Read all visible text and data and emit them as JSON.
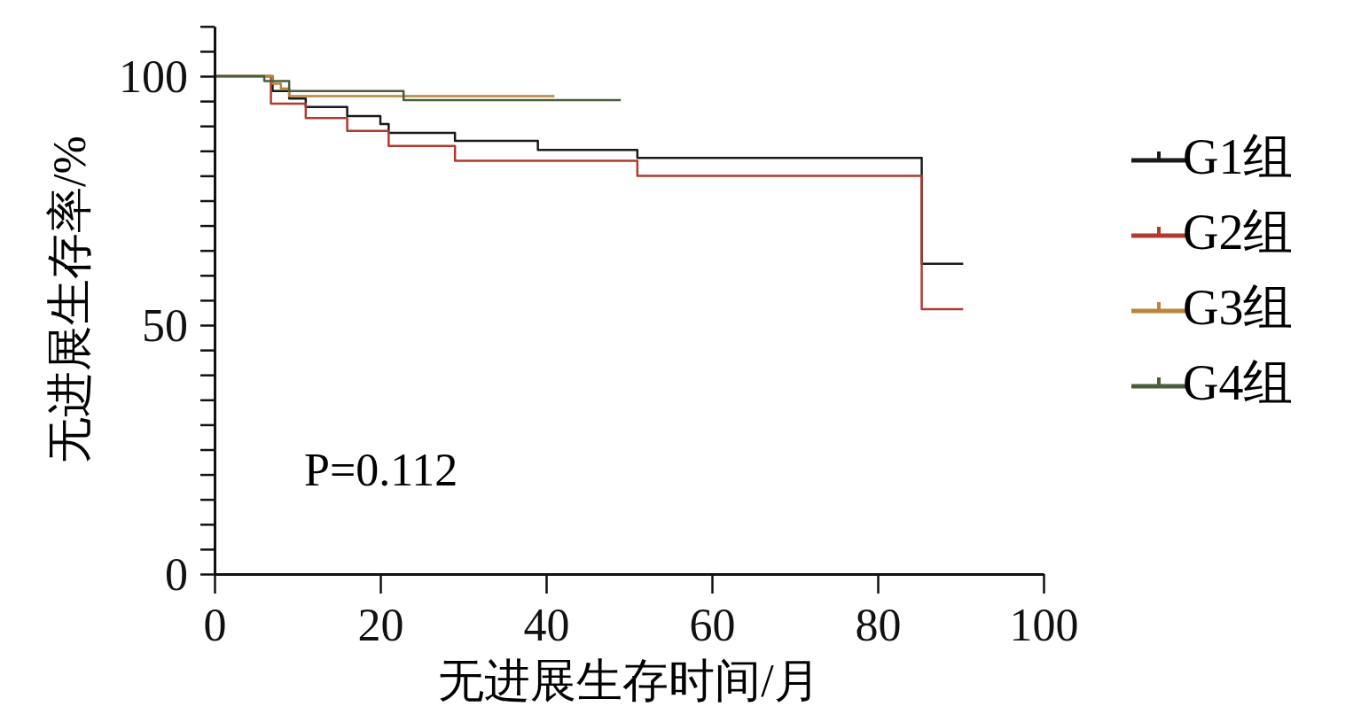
{
  "chart_data": {
    "type": "step",
    "xlabel": "无进展生存时间/月",
    "ylabel": "无进展生存率/%",
    "xlim": [
      0,
      100
    ],
    "ylim": [
      0,
      110
    ],
    "xticks": [
      0,
      20,
      40,
      60,
      80,
      100
    ],
    "yticks": [
      0,
      {
        "value": 5,
        "label": null
      },
      {
        "value": 10,
        "label": null
      },
      {
        "value": 15,
        "label": null
      },
      {
        "value": 20,
        "label": null
      },
      {
        "value": 25,
        "label": null
      },
      {
        "value": 30,
        "label": null
      },
      {
        "value": 35,
        "label": null
      },
      {
        "value": 40,
        "label": null
      },
      {
        "value": 45,
        "label": null
      },
      50,
      {
        "value": 55,
        "label": null
      },
      {
        "value": 60,
        "label": null
      },
      {
        "value": 65,
        "label": null
      },
      {
        "value": 70,
        "label": null
      },
      {
        "value": 75,
        "label": null
      },
      {
        "value": 80,
        "label": null
      },
      {
        "value": 85,
        "label": null
      },
      {
        "value": 90,
        "label": null
      },
      {
        "value": 95,
        "label": null
      },
      100,
      {
        "value": 105,
        "label": null
      },
      {
        "value": 110,
        "label": null
      }
    ],
    "legend": "right",
    "marker": "none",
    "line_style": "solid",
    "annotations": [
      "P=0.112"
    ],
    "series": [
      {
        "name": "G1组",
        "color": "#1a1a1a",
        "x": [
          0,
          7,
          9,
          11,
          16,
          20,
          21,
          29,
          39,
          51,
          85.3,
          90.3
        ],
        "values": [
          100,
          97,
          95.5,
          93.8,
          92,
          90.4,
          88.6,
          87,
          85.2,
          83.6,
          62.3,
          62.3
        ]
      },
      {
        "name": "G2组",
        "color": "#b03a2e",
        "x": [
          0,
          6.8,
          11,
          16,
          21,
          29,
          51,
          85.3,
          90.3
        ],
        "values": [
          100,
          94.5,
          91.6,
          89,
          86,
          83,
          80,
          53.2,
          53.2
        ]
      },
      {
        "name": "G3组",
        "color": "#b8863b",
        "x": [
          0,
          7,
          8,
          9,
          41
        ],
        "values": [
          100,
          98.5,
          97.5,
          96,
          96
        ]
      },
      {
        "name": "G4组",
        "color": "#4a5e3a",
        "x": [
          0,
          6,
          9,
          22.8,
          49
        ],
        "values": [
          100,
          99,
          97,
          95.2,
          95.2
        ]
      }
    ]
  }
}
